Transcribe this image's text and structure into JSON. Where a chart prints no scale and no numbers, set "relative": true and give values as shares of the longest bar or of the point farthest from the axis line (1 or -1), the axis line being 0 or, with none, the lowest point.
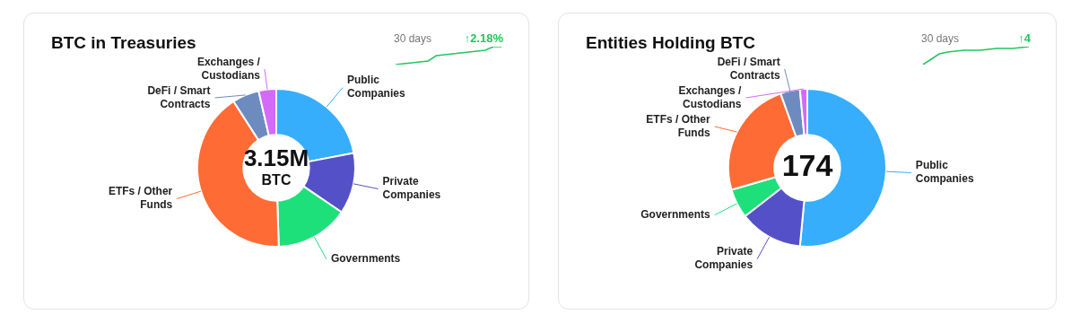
{
  "chart_data": [
    {
      "type": "donut",
      "title": "BTC in Treasuries",
      "categories": [
        "Public Companies",
        "Private Companies",
        "Governments",
        "ETFs / Other Funds",
        "DeFi / Smart Contracts",
        "Exchanges / Custodians"
      ],
      "values": [
        22,
        12.5,
        15,
        41.4,
        5.5,
        3.6
      ],
      "colors": [
        "#36aefc",
        "#5451c8",
        "#1ee07a",
        "#ff6b35",
        "#6e8bbf",
        "#d46bf7"
      ],
      "annotations": [
        "3.15M",
        "BTC"
      ]
    },
    {
      "type": "line",
      "title": "30 days",
      "annotations": [
        "↑2.18%"
      ],
      "relative": true,
      "categories": [
        null,
        null,
        null,
        null,
        null,
        null,
        null,
        null,
        null,
        null,
        null,
        null,
        null,
        null
      ],
      "values": [
        0,
        0.05,
        0.1,
        0.15,
        0.2,
        0.5,
        0.55,
        0.6,
        0.65,
        0.7,
        0.75,
        0.8,
        1,
        1
      ],
      "color": "#22c55e"
    },
    {
      "type": "donut",
      "title": "Entities Holding BTC",
      "categories": [
        "Public Companies",
        "Private Companies",
        "Governments",
        "ETFs / Other Funds",
        "DeFi / Smart Contracts",
        "Exchanges / Custodians"
      ],
      "values": [
        51.5,
        13,
        6,
        24,
        4,
        1.5
      ],
      "colors": [
        "#36aefc",
        "#5451c8",
        "#1ee07a",
        "#ff6b35",
        "#6e8bbf",
        "#d46bf7"
      ],
      "annotations": [
        "174"
      ]
    },
    {
      "type": "line",
      "title": "30 days",
      "annotations": [
        "↑4"
      ],
      "relative": true,
      "categories": [
        null,
        null,
        null,
        null,
        null,
        null,
        null,
        null,
        null,
        null,
        null,
        null,
        null,
        null
      ],
      "values": [
        0,
        0.3,
        0.6,
        0.7,
        0.75,
        0.8,
        0.8,
        0.8,
        0.85,
        0.9,
        0.9,
        0.9,
        0.95,
        1
      ],
      "color": "#22c55e"
    }
  ]
}
